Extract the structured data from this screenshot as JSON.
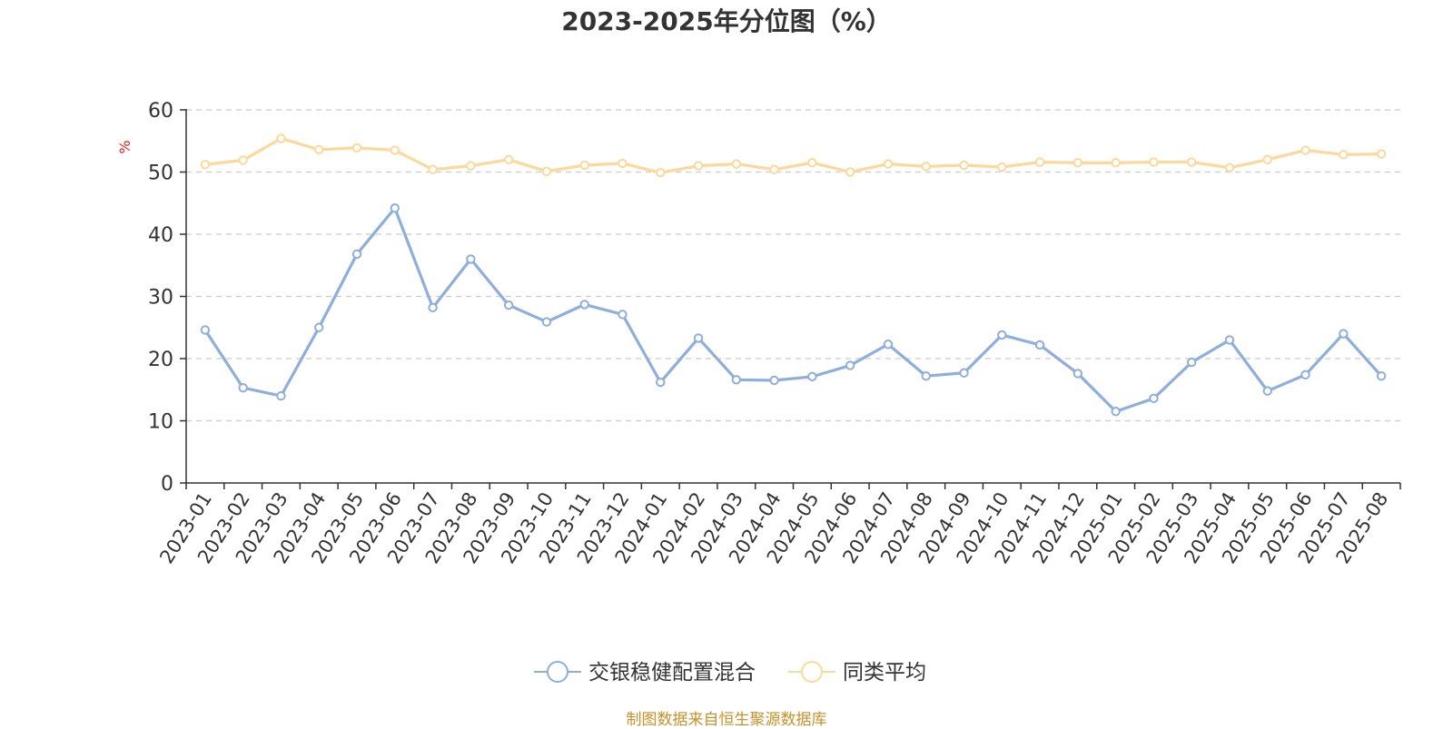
{
  "chart_data": {
    "type": "line",
    "title": "2023-2025年分位图（%）",
    "ylabel": "%",
    "xlabel": "",
    "ylim": [
      0,
      60
    ],
    "yticks": [
      0,
      10,
      20,
      30,
      40,
      50,
      60
    ],
    "grid": true,
    "legend_position": "bottom-center",
    "categories": [
      "2023-01",
      "2023-02",
      "2023-03",
      "2023-04",
      "2023-05",
      "2023-06",
      "2023-07",
      "2023-08",
      "2023-09",
      "2023-10",
      "2023-11",
      "2023-12",
      "2024-01",
      "2024-02",
      "2024-03",
      "2024-04",
      "2024-05",
      "2024-06",
      "2024-07",
      "2024-08",
      "2024-09",
      "2024-10",
      "2024-11",
      "2024-12",
      "2025-01",
      "2025-02",
      "2025-03",
      "2025-04",
      "2025-05",
      "2025-06",
      "2025-07",
      "2025-08"
    ],
    "series": [
      {
        "name": "交银稳健配置混合",
        "color": "#8eaedb",
        "values": [
          24.6,
          15.3,
          14.0,
          25.0,
          36.8,
          44.2,
          28.2,
          36.0,
          28.6,
          25.9,
          28.7,
          27.1,
          16.2,
          23.3,
          16.6,
          16.5,
          17.1,
          18.9,
          22.3,
          17.2,
          17.7,
          23.8,
          22.2,
          17.6,
          11.5,
          13.6,
          19.4,
          23.0,
          14.8,
          17.4,
          24.0,
          17.2
        ]
      },
      {
        "name": "同类平均",
        "color": "#fcd89a",
        "values": [
          51.2,
          51.9,
          55.4,
          53.6,
          53.9,
          53.5,
          50.4,
          51.0,
          52.0,
          50.1,
          51.1,
          51.4,
          49.9,
          51.0,
          51.3,
          50.4,
          51.5,
          50.0,
          51.3,
          50.9,
          51.1,
          50.8,
          51.6,
          51.5,
          51.5,
          51.6,
          51.6,
          50.7,
          52.0,
          53.5,
          52.8,
          52.9
        ]
      }
    ]
  },
  "source_text": "制图数据来自恒生聚源数据库"
}
